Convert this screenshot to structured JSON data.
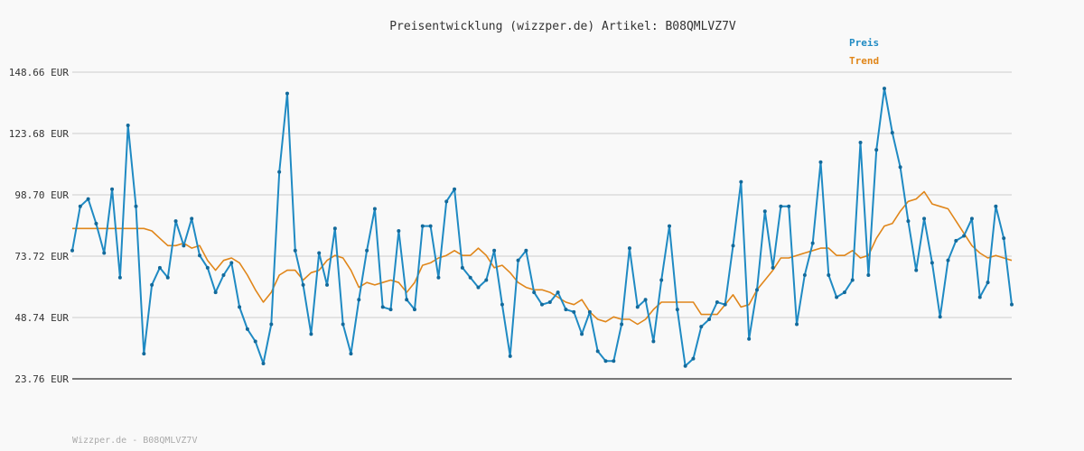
{
  "chart_data": {
    "type": "line",
    "title": "Preisentwicklung (wizzper.de) Artikel: B08QMLVZ7V",
    "ylim": [
      23.76,
      148.66
    ],
    "y_ticks": [
      "148.66 EUR",
      "123.68 EUR",
      "98.70 EUR",
      "73.72 EUR",
      "48.74 EUR",
      "23.76 EUR"
    ],
    "y_tick_values": [
      148.66,
      123.68,
      98.7,
      73.72,
      48.74,
      23.76
    ],
    "grid": true,
    "legend_position": "top-right",
    "series": [
      {
        "name": "Preis",
        "color": "#1f8ac3",
        "markers": true,
        "values": [
          76,
          94,
          97,
          87,
          75,
          101,
          65,
          127,
          94,
          34,
          62,
          69,
          65,
          88,
          78,
          89,
          74,
          69,
          59,
          66,
          71,
          53,
          44,
          39,
          30,
          46,
          108,
          140,
          76,
          62,
          42,
          75,
          62,
          85,
          46,
          34,
          56,
          76,
          93,
          53,
          52,
          84,
          56,
          52,
          86,
          86,
          65,
          96,
          101,
          69,
          65,
          61,
          64,
          76,
          54,
          33,
          72,
          76,
          59,
          54,
          55,
          59,
          52,
          51,
          42,
          51,
          35,
          31,
          31,
          46,
          77,
          53,
          56,
          39,
          64,
          86,
          52,
          29,
          32,
          45,
          48,
          55,
          54,
          78,
          104,
          40,
          60,
          92,
          69,
          94,
          94,
          46,
          66,
          79,
          112,
          66,
          57,
          59,
          64,
          120,
          66,
          117,
          142,
          124,
          110,
          88,
          68,
          89,
          71,
          49,
          72,
          80,
          82,
          89,
          57,
          63,
          94,
          81,
          54
        ],
        "x": [
          1,
          2,
          3,
          4,
          5,
          6,
          7,
          8,
          9,
          10,
          11,
          12,
          13,
          14,
          15,
          16,
          17,
          18,
          19,
          20,
          21,
          22,
          23,
          24,
          25,
          26,
          27,
          28,
          29,
          30,
          31,
          32,
          33,
          34,
          35,
          36,
          37,
          38,
          39,
          40,
          41,
          42,
          43,
          44,
          45,
          46,
          47,
          48,
          49,
          50,
          51,
          52,
          53,
          54,
          55,
          56,
          57,
          58,
          59,
          60,
          61,
          62,
          63,
          64,
          65,
          66,
          67,
          68,
          69,
          70,
          71,
          72,
          73,
          74,
          75,
          76,
          77,
          78,
          79,
          80,
          81,
          82,
          83,
          84,
          85,
          86,
          87,
          88,
          89,
          90,
          91,
          92,
          93,
          94,
          95,
          96,
          97,
          98,
          99,
          100,
          101,
          102,
          103,
          104,
          105,
          106,
          107,
          108,
          109,
          110,
          111,
          112,
          113,
          114,
          115,
          116,
          117,
          118,
          119
        ]
      },
      {
        "name": "Trend",
        "color": "#e0861a",
        "markers": false,
        "values": [
          85,
          85,
          85,
          85,
          85,
          85,
          85,
          85,
          85,
          85,
          84,
          81,
          78,
          78,
          79,
          77,
          78,
          72,
          68,
          72,
          73,
          71,
          66,
          60,
          55,
          59,
          66,
          68,
          68,
          64,
          67,
          68,
          72,
          74,
          73,
          68,
          61,
          63,
          62,
          63,
          64,
          63,
          59,
          63,
          70,
          71,
          73,
          74,
          76,
          74,
          74,
          77,
          74,
          69,
          70,
          67,
          63,
          61,
          60,
          60,
          59,
          57,
          55,
          54,
          56,
          51,
          48,
          47,
          49,
          48,
          48,
          46,
          48,
          52,
          55,
          55,
          55,
          55,
          55,
          50,
          50,
          50,
          54,
          58,
          53,
          54,
          60,
          64,
          68,
          73,
          73,
          74,
          75,
          76,
          77,
          77,
          74,
          74,
          76,
          73,
          74,
          81,
          86,
          87,
          92,
          96,
          97,
          100,
          95,
          94,
          93,
          88,
          83,
          78,
          75,
          73,
          74,
          73,
          72
        ],
        "x": [
          1,
          2,
          3,
          4,
          5,
          6,
          7,
          8,
          9,
          10,
          11,
          12,
          13,
          14,
          15,
          16,
          17,
          18,
          19,
          20,
          21,
          22,
          23,
          24,
          25,
          26,
          27,
          28,
          29,
          30,
          31,
          32,
          33,
          34,
          35,
          36,
          37,
          38,
          39,
          40,
          41,
          42,
          43,
          44,
          45,
          46,
          47,
          48,
          49,
          50,
          51,
          52,
          53,
          54,
          55,
          56,
          57,
          58,
          59,
          60,
          61,
          62,
          63,
          64,
          65,
          66,
          67,
          68,
          69,
          70,
          71,
          72,
          73,
          74,
          75,
          76,
          77,
          78,
          79,
          80,
          81,
          82,
          83,
          84,
          85,
          86,
          87,
          88,
          89,
          90,
          91,
          92,
          93,
          94,
          95,
          96,
          97,
          98,
          99,
          100,
          101,
          102,
          103,
          104,
          105,
          106,
          107,
          108,
          109,
          110,
          111,
          112,
          113,
          114,
          115,
          116,
          117,
          118,
          119
        ]
      }
    ]
  },
  "footer": "Wizzper.de - B08QMLVZ7V"
}
